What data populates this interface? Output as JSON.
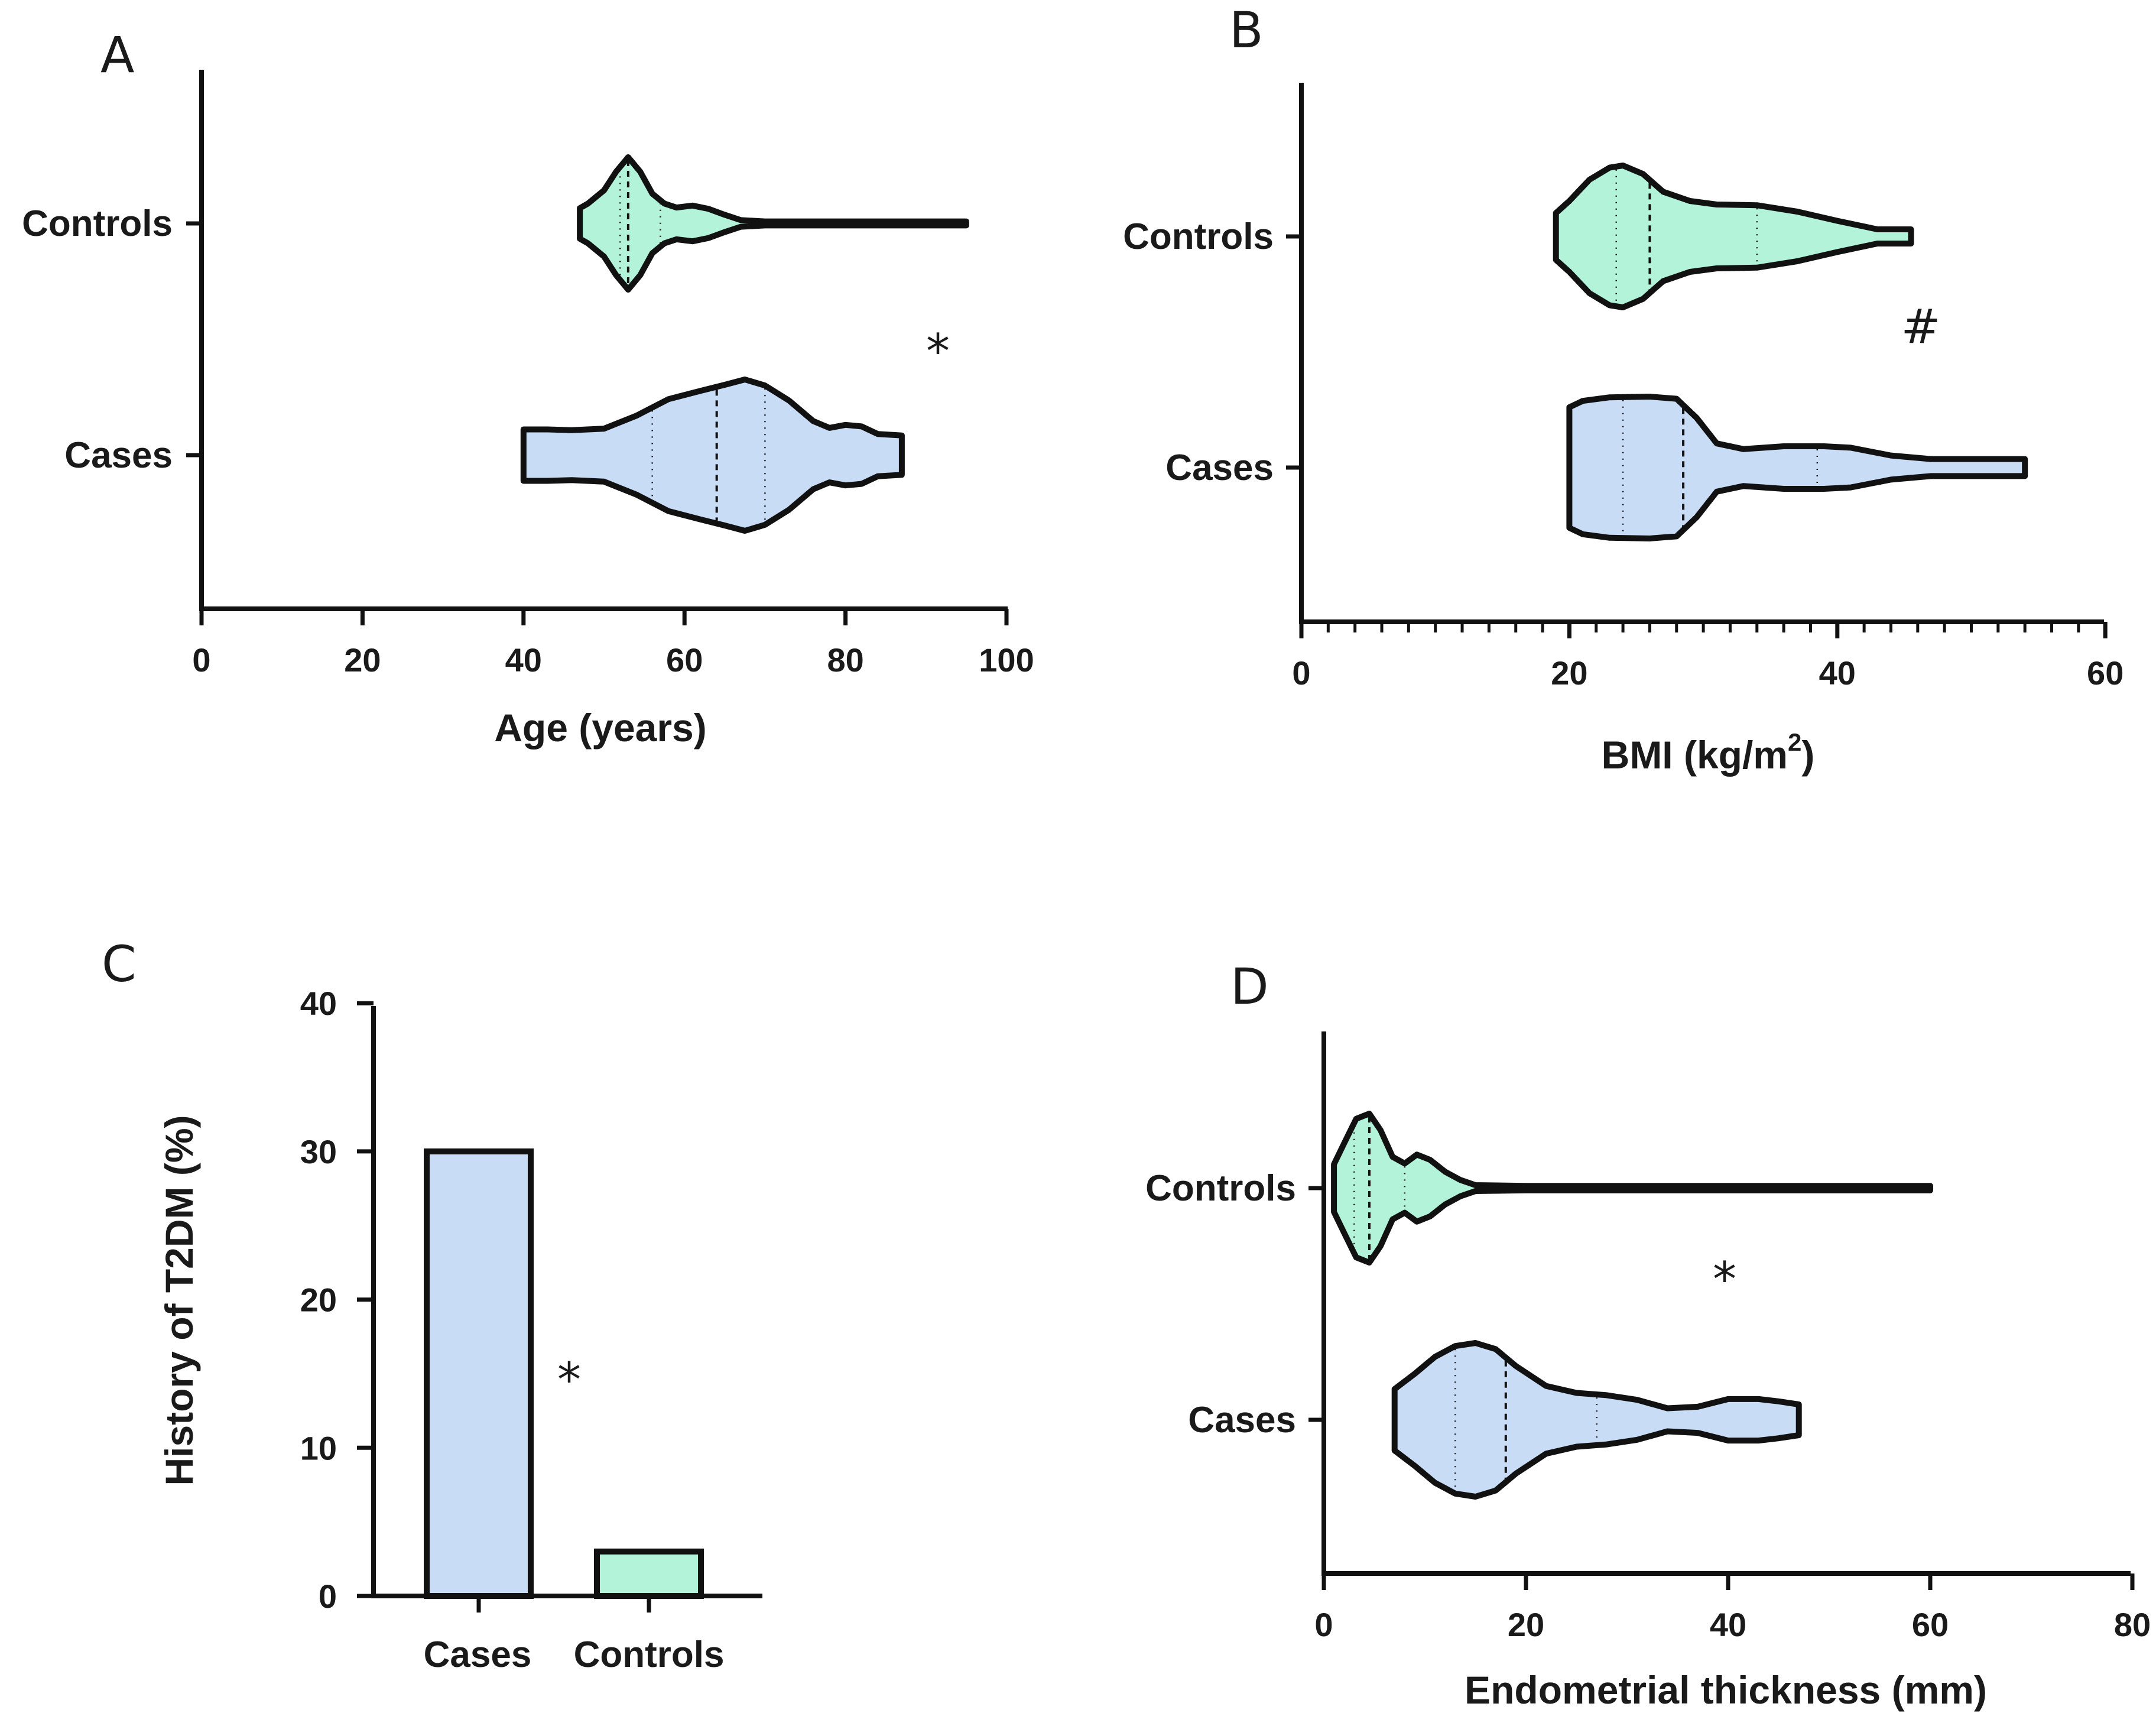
{
  "colors": {
    "cases": "#c9dcf6",
    "controls": "#b2f3da",
    "stroke": "#111111"
  },
  "chart_data": [
    {
      "panel": "A",
      "type": "violin",
      "xlabel": "Age (years)",
      "xlim": [
        0,
        100
      ],
      "xticks": [
        "0",
        "20",
        "40",
        "60",
        "80",
        "100"
      ],
      "significance": "*",
      "groups": [
        {
          "name": "Controls",
          "min": 47,
          "max": 95,
          "median": 53,
          "q1": 52,
          "q3": 57,
          "profile": [
            [
              47,
              0.23
            ],
            [
              48,
              0.3
            ],
            [
              50,
              0.5
            ],
            [
              51.5,
              0.78
            ],
            [
              53,
              1.0
            ],
            [
              54.5,
              0.78
            ],
            [
              56,
              0.45
            ],
            [
              57.5,
              0.3
            ],
            [
              59,
              0.24
            ],
            [
              61,
              0.27
            ],
            [
              63,
              0.22
            ],
            [
              65,
              0.13
            ],
            [
              67,
              0.05
            ],
            [
              70,
              0.03
            ],
            [
              94,
              0.03
            ],
            [
              95,
              0.03
            ]
          ]
        },
        {
          "name": "Cases",
          "min": 40,
          "max": 87,
          "median": 64,
          "q1": 56,
          "q3": 70,
          "profile": [
            [
              40,
              0.34
            ],
            [
              43,
              0.34
            ],
            [
              46,
              0.33
            ],
            [
              50,
              0.35
            ],
            [
              54,
              0.52
            ],
            [
              58,
              0.74
            ],
            [
              62,
              0.85
            ],
            [
              65,
              0.93
            ],
            [
              67.5,
              1.0
            ],
            [
              70,
              0.92
            ],
            [
              73,
              0.72
            ],
            [
              76,
              0.45
            ],
            [
              78,
              0.36
            ],
            [
              80,
              0.4
            ],
            [
              82,
              0.38
            ],
            [
              84,
              0.28
            ],
            [
              87,
              0.26
            ]
          ]
        }
      ]
    },
    {
      "panel": "B",
      "type": "violin",
      "xlabel": "BMI (kg/m",
      "xlabel_sup": "2",
      "xlabel_end": ")",
      "xlim": [
        0,
        60
      ],
      "xticks": [
        "0",
        "20",
        "40",
        "60"
      ],
      "significance": "#",
      "groups": [
        {
          "name": "Controls",
          "min": 19,
          "max": 45.5,
          "median": 26,
          "q1": 23.5,
          "q3": 34,
          "profile": [
            [
              19,
              0.33
            ],
            [
              20,
              0.5
            ],
            [
              21.5,
              0.8
            ],
            [
              23,
              0.97
            ],
            [
              24,
              1.0
            ],
            [
              25.5,
              0.88
            ],
            [
              27,
              0.63
            ],
            [
              29,
              0.5
            ],
            [
              31,
              0.45
            ],
            [
              34,
              0.44
            ],
            [
              37,
              0.35
            ],
            [
              40,
              0.22
            ],
            [
              43,
              0.1
            ],
            [
              45.5,
              0.1
            ]
          ]
        },
        {
          "name": "Cases",
          "min": 20,
          "max": 54,
          "median": 28.5,
          "q1": 24,
          "q3": 38.5,
          "profile": [
            [
              20,
              0.85
            ],
            [
              21,
              0.94
            ],
            [
              23,
              0.99
            ],
            [
              26,
              1.0
            ],
            [
              28,
              0.97
            ],
            [
              29.5,
              0.7
            ],
            [
              31,
              0.34
            ],
            [
              33,
              0.26
            ],
            [
              36,
              0.3
            ],
            [
              39,
              0.3
            ],
            [
              41,
              0.28
            ],
            [
              44,
              0.17
            ],
            [
              47,
              0.12
            ],
            [
              50,
              0.12
            ],
            [
              54,
              0.12
            ]
          ]
        }
      ]
    },
    {
      "panel": "C",
      "type": "bar",
      "ylabel": "History of T2DM (%)",
      "ylim": [
        0,
        40
      ],
      "yticks": [
        "0",
        "10",
        "20",
        "30",
        "40"
      ],
      "categories": [
        "Cases",
        "Controls"
      ],
      "values": [
        30,
        3
      ],
      "significance": "*"
    },
    {
      "panel": "D",
      "type": "violin",
      "xlabel": "Endometrial thickness (mm)",
      "xlim": [
        0,
        80
      ],
      "xticks": [
        "0",
        "20",
        "40",
        "60",
        "80"
      ],
      "significance": "*",
      "groups": [
        {
          "name": "Controls",
          "min": 1,
          "max": 60,
          "median": 4.5,
          "q1": 3,
          "q3": 8,
          "profile": [
            [
              1,
              0.32
            ],
            [
              2,
              0.6
            ],
            [
              3.2,
              0.93
            ],
            [
              4.5,
              1.0
            ],
            [
              5.6,
              0.78
            ],
            [
              6.8,
              0.42
            ],
            [
              8,
              0.33
            ],
            [
              9.2,
              0.45
            ],
            [
              10.5,
              0.38
            ],
            [
              12,
              0.22
            ],
            [
              13.5,
              0.11
            ],
            [
              15,
              0.04
            ],
            [
              20,
              0.03
            ],
            [
              59,
              0.03
            ],
            [
              60,
              0.03
            ]
          ]
        },
        {
          "name": "Cases",
          "min": 7,
          "max": 47,
          "median": 18,
          "q1": 13,
          "q3": 27,
          "profile": [
            [
              7,
              0.4
            ],
            [
              9,
              0.6
            ],
            [
              11,
              0.82
            ],
            [
              13,
              0.96
            ],
            [
              15,
              1.0
            ],
            [
              17,
              0.92
            ],
            [
              19,
              0.7
            ],
            [
              22,
              0.44
            ],
            [
              25,
              0.35
            ],
            [
              28,
              0.32
            ],
            [
              31,
              0.26
            ],
            [
              34,
              0.15
            ],
            [
              37,
              0.17
            ],
            [
              40,
              0.27
            ],
            [
              43,
              0.27
            ],
            [
              45,
              0.24
            ],
            [
              47,
              0.2
            ]
          ]
        }
      ]
    }
  ]
}
